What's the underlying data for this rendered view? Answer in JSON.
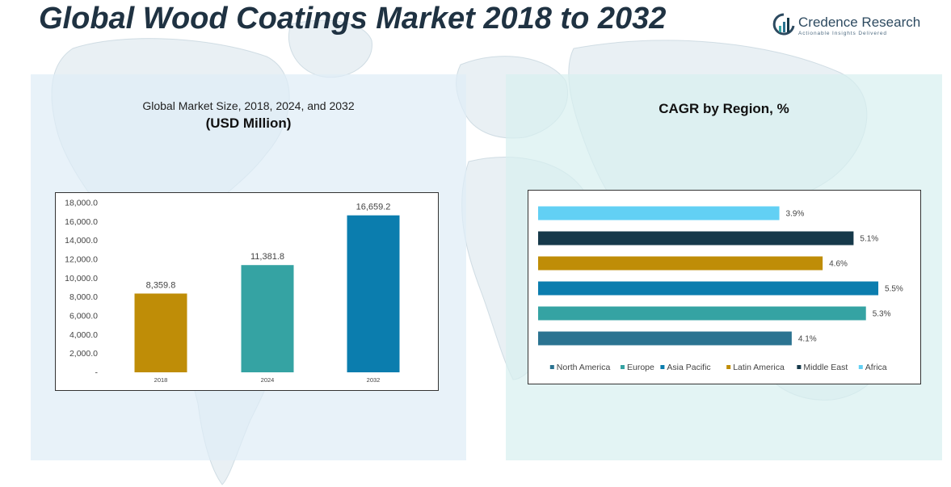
{
  "header": {
    "title": "Global Wood Coatings Market 2018 to 2032",
    "logo_name": "Credence Research",
    "logo_tagline": "Actionable Insights Delivered"
  },
  "left_panel": {
    "subtitle": "Global Market Size, 2018, 2024, and 2032",
    "unit": "(USD Million)"
  },
  "right_panel": {
    "subtitle": "CAGR by Region, %"
  },
  "colors": {
    "north_america": "#2b7391",
    "europe": "#35a3a3",
    "asia_pacific": "#0b7dae",
    "latin_america": "#bf8d07",
    "middle_east": "#16394a",
    "africa": "#62d0f4"
  },
  "chart_data": [
    {
      "type": "bar",
      "title": "Global Market Size, 2018, 2024, and 2032",
      "ylabel": "USD Million",
      "categories": [
        "2018",
        "2024",
        "2032"
      ],
      "values": [
        8359.8,
        11381.8,
        16659.2
      ],
      "value_labels": [
        "8,359.8",
        "11,381.8",
        "16,659.2"
      ],
      "bar_colors": [
        "#bf8d07",
        "#35a3a3",
        "#0b7dae"
      ],
      "ylim": [
        0,
        18000
      ],
      "yticks": [
        0,
        2000,
        4000,
        6000,
        8000,
        10000,
        12000,
        14000,
        16000,
        18000
      ],
      "ytick_labels": [
        "-",
        "2,000.0",
        "4,000.0",
        "6,000.0",
        "8,000.0",
        "10,000.0",
        "12,000.0",
        "14,000.0",
        "16,000.0",
        "18,000.0"
      ],
      "grid": false
    },
    {
      "type": "bar",
      "orientation": "horizontal",
      "title": "CAGR by Region, %",
      "series": [
        {
          "name": "North America",
          "value": 4.1,
          "label": "4.1%",
          "color": "#2b7391"
        },
        {
          "name": "Europe",
          "value": 5.3,
          "label": "5.3%",
          "color": "#35a3a3"
        },
        {
          "name": "Asia Pacific",
          "value": 5.5,
          "label": "5.5%",
          "color": "#0b7dae"
        },
        {
          "name": "Latin America",
          "value": 4.6,
          "label": "4.6%",
          "color": "#bf8d07"
        },
        {
          "name": "Middle East",
          "value": 5.1,
          "label": "5.1%",
          "color": "#16394a"
        },
        {
          "name": "Africa",
          "value": 3.9,
          "label": "3.9%",
          "color": "#62d0f4"
        }
      ],
      "xlim": [
        0,
        5.8
      ],
      "legend": "bottom",
      "grid": false
    }
  ]
}
